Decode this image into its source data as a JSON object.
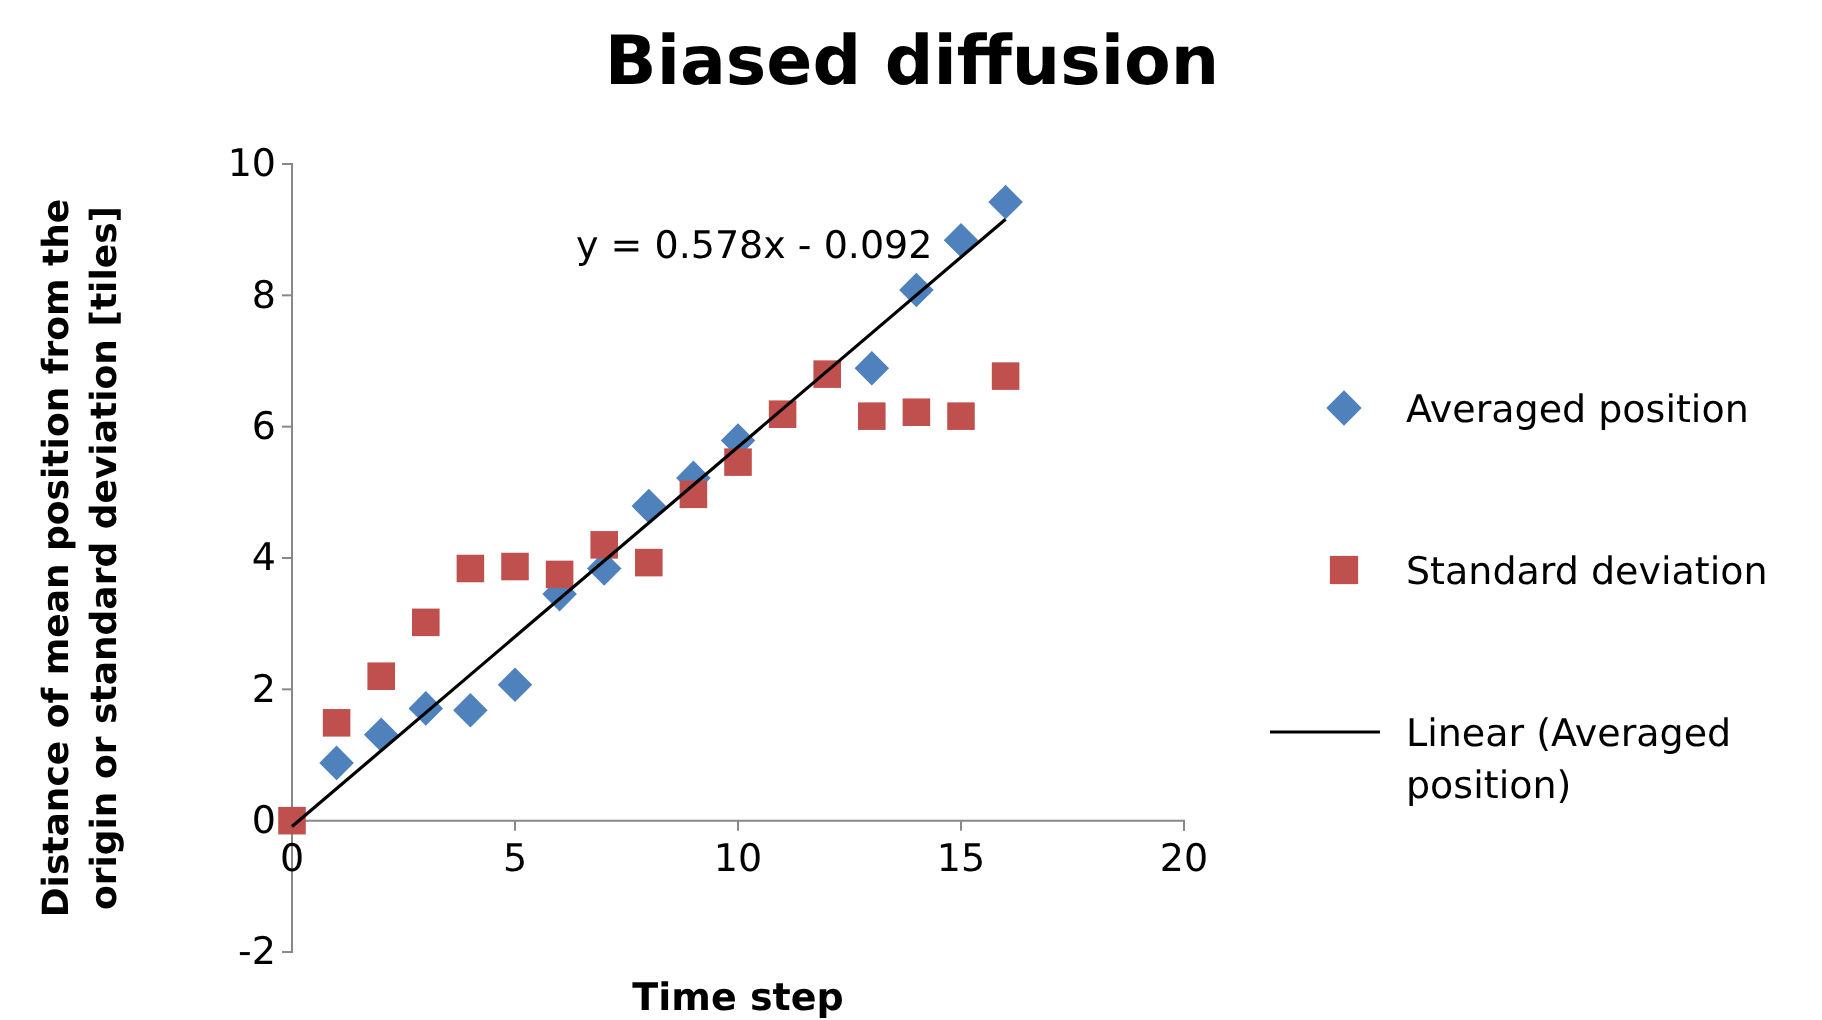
{
  "chart_data": {
    "type": "scatter",
    "title": "Biased diffusion",
    "xlabel": "Time step",
    "ylabel": "Distance of mean position from the origin or standard deviation [tiles]",
    "x": [
      0,
      1,
      2,
      3,
      4,
      5,
      6,
      7,
      8,
      9,
      10,
      11,
      12,
      13,
      14,
      15,
      16
    ],
    "series": [
      {
        "name": "Averaged position",
        "color": "#4f81bd",
        "marker": "diamond",
        "values": [
          null,
          0.88,
          1.31,
          1.71,
          1.68,
          2.07,
          3.45,
          3.84,
          4.79,
          5.22,
          5.79,
          null,
          null,
          6.89,
          8.08,
          8.84,
          9.42
        ]
      },
      {
        "name": "Standard deviation",
        "color": "#c0504d",
        "marker": "square",
        "values": [
          0,
          1.49,
          2.2,
          3.02,
          3.84,
          3.87,
          3.75,
          4.2,
          3.93,
          4.97,
          5.46,
          6.19,
          6.8,
          6.16,
          6.22,
          6.16,
          6.77
        ]
      },
      {
        "name": "Linear (Averaged position)",
        "type": "line",
        "color": "#000000",
        "x": [
          0,
          16
        ],
        "values": [
          -0.09,
          9.16
        ]
      }
    ],
    "annotations": [
      "y = 0.578x - 0.092"
    ],
    "xlim": [
      0,
      20
    ],
    "xticks": [
      0,
      5,
      10,
      15,
      20
    ],
    "ylim": [
      -2,
      10
    ],
    "yticks": [
      -2,
      0,
      2,
      4,
      6,
      8,
      10
    ],
    "grid": false,
    "legend": "right"
  }
}
